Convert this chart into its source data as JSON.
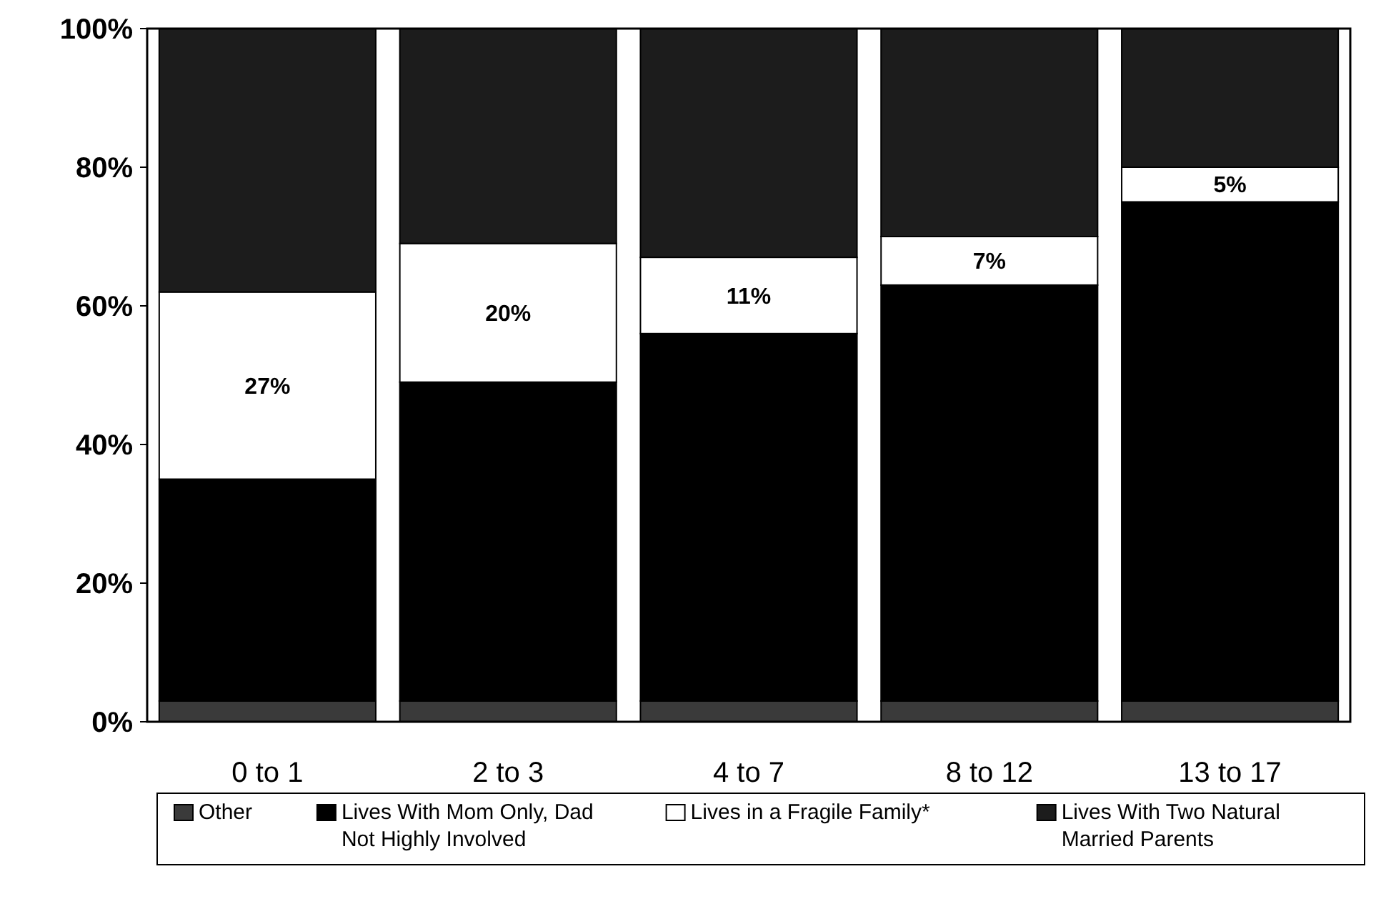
{
  "chart_data": {
    "type": "bar",
    "stacked": true,
    "categories": [
      "0 to 1",
      "2 to 3",
      "4 to 7",
      "8 to 12",
      "13 to 17"
    ],
    "series": [
      {
        "name": "Other",
        "color": "#3a3a3a",
        "values": [
          3,
          3,
          3,
          3,
          3
        ]
      },
      {
        "name": "Lives With Mom Only, Dad Not Highly Involved",
        "color": "#000000",
        "values": [
          32,
          46,
          53,
          60,
          72
        ]
      },
      {
        "name": "Lives in a Fragile Family*",
        "color": "#ffffff",
        "values": [
          27,
          20,
          11,
          7,
          5
        ],
        "value_labels": [
          "27%",
          "20%",
          "11%",
          "7%",
          "5%"
        ]
      },
      {
        "name": "Lives With Two Natural Married Parents",
        "color": "#1c1c1c",
        "values": [
          38,
          31,
          33,
          30,
          20
        ]
      }
    ],
    "ylim": [
      0,
      100
    ],
    "yticks": [
      {
        "value": 0,
        "label": "0%"
      },
      {
        "value": 20,
        "label": "20%"
      },
      {
        "value": 40,
        "label": "40%"
      },
      {
        "value": 60,
        "label": "60%"
      },
      {
        "value": 80,
        "label": "80%"
      },
      {
        "value": 100,
        "label": "100%"
      }
    ],
    "grid": false,
    "legend": "bottom"
  }
}
